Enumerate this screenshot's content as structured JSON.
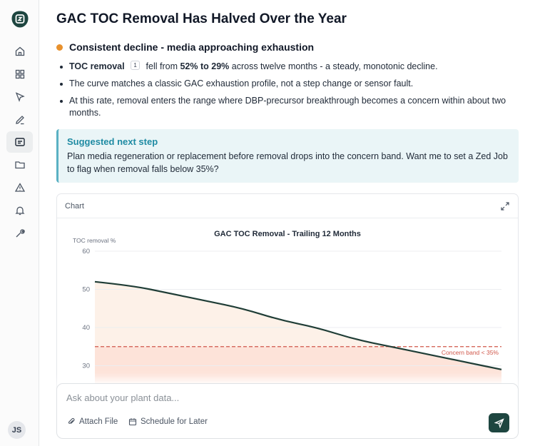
{
  "sidebar": {
    "items": [
      {
        "icon": "home-icon",
        "active": false
      },
      {
        "icon": "grid-icon",
        "active": false
      },
      {
        "icon": "cursor-icon",
        "active": false
      },
      {
        "icon": "pen-icon",
        "active": false
      },
      {
        "icon": "chat-report-icon",
        "active": true
      },
      {
        "icon": "folder-icon",
        "active": false
      },
      {
        "icon": "warning-icon",
        "active": false
      },
      {
        "icon": "bell-icon",
        "active": false
      },
      {
        "icon": "wrench-icon",
        "active": false
      }
    ],
    "avatar_initials": "JS"
  },
  "page": {
    "title": "GAC TOC Removal Has Halved Over the Year"
  },
  "finding": {
    "title": "Consistent decline - media approaching exhaustion",
    "status_color": "#e8912d"
  },
  "bullets": {
    "b1": {
      "term": "TOC removal",
      "cite": "1",
      "pre": "fell from",
      "highlight": "52% to 29%",
      "post": "across twelve months - a steady, monotonic decline."
    },
    "b2": "The curve matches a classic GAC exhaustion profile, not a step change or sensor fault.",
    "b3": "At this rate, removal enters the range where DBP-precursor breakthrough becomes a concern within about two months."
  },
  "callout": {
    "title": "Suggested next step",
    "text": "Plan media regeneration or replacement before removal drops into the concern band. Want me to set a Zed Job to flag when removal falls below 35%?"
  },
  "chart_card": {
    "label": "Chart"
  },
  "chart_data": {
    "type": "area",
    "title": "GAC TOC Removal - Trailing 12 Months",
    "ylabel": "TOC removal %",
    "xlabel": "",
    "ylim": [
      20,
      60
    ],
    "yticks": [
      30,
      40,
      50,
      60
    ],
    "grid": true,
    "x": [
      1,
      2,
      3,
      4,
      5,
      6,
      7,
      8,
      9,
      10,
      11,
      12
    ],
    "series": [
      {
        "values": [
          52,
          51,
          49,
          47,
          45,
          42,
          40,
          37,
          35,
          33,
          31,
          29
        ],
        "color": "#1f3d36",
        "fill": "#fdf1e8"
      }
    ],
    "threshold": {
      "value": 35,
      "label": "Concern band < 35%",
      "color": "#d0574a",
      "fill": "#fde3d9"
    }
  },
  "composer": {
    "placeholder": "Ask about your plant data...",
    "attach_label": "Attach File",
    "schedule_label": "Schedule for Later"
  }
}
